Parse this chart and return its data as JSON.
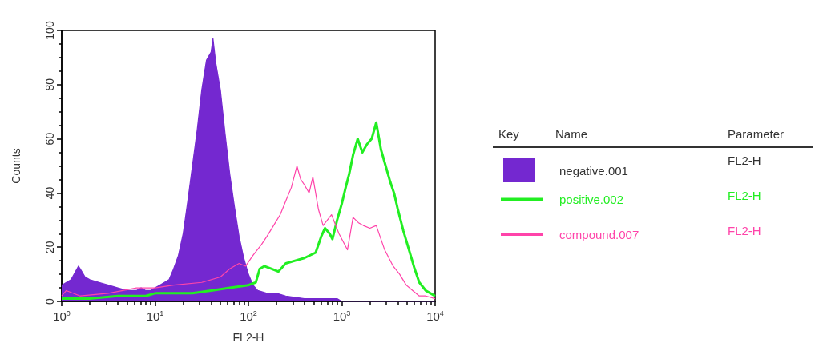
{
  "chart_data": {
    "type": "line",
    "xlabel": "FL2-H",
    "ylabel": "Counts",
    "log": "x",
    "xlim": [
      1,
      10000
    ],
    "xticks": [
      {
        "value": 1,
        "label": "10$^{0}$"
      },
      {
        "value": 10,
        "label": "10$^{1}$"
      },
      {
        "value": 100,
        "label": "10$^{2}$"
      },
      {
        "value": 1000,
        "label": "10$^{3}$"
      },
      {
        "value": 10000,
        "label": "10$^{4}$"
      }
    ],
    "ylim": [
      0,
      100
    ],
    "yticks": [
      0,
      20,
      40,
      60,
      80,
      100
    ],
    "grid": false,
    "legend": "right",
    "marker": "none",
    "annotations": [
      "Key",
      "Name",
      "Parameter",
      "FL2-H",
      "FL2-H",
      "FL2-H"
    ],
    "series": [
      {
        "name": "negative.001",
        "type": "area",
        "color": "#7428d0",
        "x": [
          1,
          1.26,
          1.51,
          1.58,
          1.78,
          2,
          2.51,
          3.16,
          3.98,
          5.01,
          6.31,
          7.08,
          7.94,
          8.91,
          10,
          11.2,
          12.6,
          14.1,
          15.8,
          17.8,
          20,
          22.4,
          25.1,
          28.2,
          31.6,
          35.5,
          39.8,
          41.7,
          44.7,
          50.1,
          56.2,
          63.1,
          70.8,
          79.4,
          89.1,
          100,
          112,
          126,
          158,
          200,
          251,
          398,
          631,
          891,
          1000,
          10000
        ],
        "values": [
          6,
          8,
          13,
          12,
          9,
          8,
          7,
          6,
          5,
          4,
          4,
          5,
          4,
          4,
          5,
          6,
          7,
          8,
          12,
          17,
          25,
          37,
          50,
          63,
          78,
          89,
          92,
          97,
          88,
          78,
          62,
          47,
          35,
          24,
          16,
          10,
          6,
          4,
          3,
          3,
          2,
          1,
          1,
          1,
          0,
          0
        ]
      },
      {
        "name": "positive.002",
        "type": "line",
        "color": "#22ee22",
        "x": [
          1,
          2,
          3.98,
          7.94,
          10,
          15.8,
          25.1,
          39.8,
          63.1,
          100,
          120,
          132,
          148,
          178,
          209,
          251,
          316,
          398,
          525,
          603,
          661,
          741,
          794,
          891,
          1000,
          1100,
          1200,
          1320,
          1480,
          1660,
          1860,
          2090,
          2340,
          2630,
          2950,
          3310,
          3630,
          3980,
          4570,
          5250,
          6030,
          6760,
          7940,
          8910,
          10000
        ],
        "values": [
          1,
          1,
          2,
          2,
          3,
          3,
          3,
          4,
          5,
          6,
          7,
          12,
          13,
          12,
          11,
          14,
          15,
          16,
          18,
          24,
          27,
          25,
          23,
          30,
          36,
          42,
          47,
          54,
          60,
          55,
          58,
          60,
          66,
          56,
          50,
          44,
          40,
          34,
          26,
          19,
          12,
          7,
          4,
          3,
          2
        ]
      },
      {
        "name": "compound.007",
        "type": "line",
        "color": "#ff44aa",
        "x": [
          1,
          1.12,
          1.58,
          3.16,
          6.31,
          10,
          15.8,
          31.6,
          50.1,
          63.1,
          79.4,
          93.3,
          112,
          138,
          158,
          186,
          219,
          251,
          288,
          331,
          363,
          398,
          447,
          490,
          562,
          631,
          776,
          933,
          1150,
          1320,
          1510,
          1700,
          2000,
          2340,
          2880,
          3550,
          4170,
          4900,
          5750,
          6760,
          7940,
          10000
        ],
        "values": [
          2,
          4,
          2,
          3,
          5,
          5,
          6,
          7,
          9,
          12,
          14,
          13,
          17,
          21,
          24,
          28,
          32,
          37,
          42,
          50,
          45,
          43,
          40,
          46,
          34,
          28,
          32,
          25,
          19,
          31,
          29,
          28,
          27,
          28,
          19,
          13,
          10,
          6,
          4,
          2,
          2,
          1
        ]
      }
    ]
  }
}
